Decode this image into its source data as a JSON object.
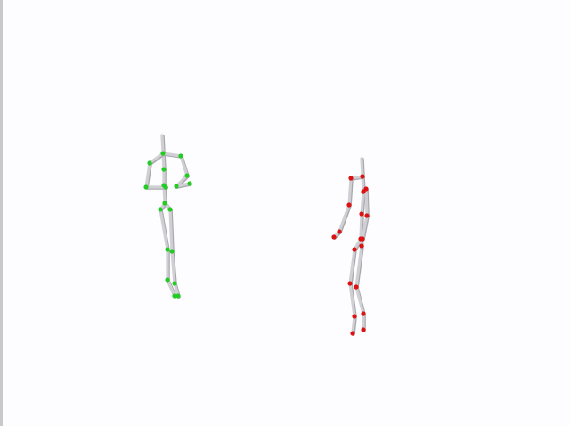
{
  "scene": {
    "background": "#fdfcfe",
    "bone_color": "#cfcfd4",
    "bone_shadow": "#a8a8ae",
    "figures": [
      {
        "id": "left-skeleton",
        "joint_color": "#22cc22"
      },
      {
        "id": "right-skeleton",
        "joint_color": "#dd1111"
      }
    ]
  }
}
